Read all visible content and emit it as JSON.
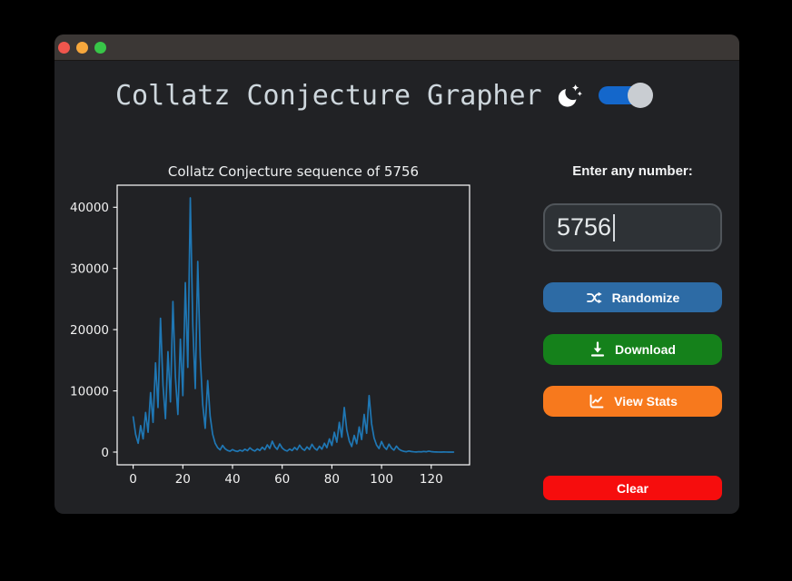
{
  "header": {
    "title": "Collatz Conjecture Grapher",
    "theme_toggle": {
      "state": "on",
      "track_color": "#1467cb",
      "knob_color": "#c9cdd2"
    }
  },
  "panel": {
    "input_label": "Enter any number:",
    "input_value": "5756",
    "buttons": [
      {
        "label": "Randomize",
        "icon": "shuffle-icon",
        "color": "#2d6ba5"
      },
      {
        "label": "Download",
        "icon": "download-icon",
        "color": "#15811b"
      },
      {
        "label": "View Stats",
        "icon": "line-chart-icon",
        "color": "#f7791d"
      },
      {
        "label": "Clear",
        "icon": null,
        "color": "#f60d0d"
      }
    ]
  },
  "chart_data": {
    "type": "line",
    "title": "Collatz Conjecture sequence of 5756",
    "xlabel": "",
    "ylabel": "",
    "grid": false,
    "line_color": "#1f77b4",
    "xlim": [
      -6.45,
      135.45
    ],
    "ylim": [
      -2075,
      43599
    ],
    "xticks": [
      0,
      20,
      40,
      60,
      80,
      100,
      120
    ],
    "yticks": [
      0,
      10000,
      20000,
      30000,
      40000
    ],
    "x_start": 0,
    "values": [
      5756,
      2878,
      1439,
      4318,
      2159,
      6478,
      3239,
      9718,
      4859,
      14578,
      7289,
      21868,
      10934,
      5467,
      16402,
      8201,
      24604,
      12302,
      6151,
      18454,
      9227,
      27682,
      13841,
      41524,
      20762,
      10381,
      31144,
      15572,
      7786,
      3893,
      11680,
      5840,
      2920,
      1460,
      730,
      365,
      1096,
      548,
      274,
      137,
      412,
      206,
      103,
      310,
      155,
      466,
      233,
      700,
      350,
      175,
      526,
      263,
      790,
      395,
      1186,
      593,
      1780,
      890,
      445,
      1336,
      668,
      334,
      167,
      502,
      251,
      754,
      377,
      1132,
      566,
      283,
      850,
      425,
      1276,
      638,
      319,
      958,
      479,
      1438,
      719,
      2158,
      1079,
      3238,
      1619,
      4858,
      2429,
      7288,
      3644,
      1822,
      911,
      2734,
      1367,
      4102,
      2051,
      6154,
      3077,
      9232,
      4616,
      2308,
      1154,
      577,
      1732,
      866,
      433,
      1300,
      650,
      325,
      976,
      488,
      244,
      122,
      61,
      184,
      92,
      46,
      23,
      70,
      35,
      106,
      53,
      160,
      80,
      40,
      20,
      10,
      5,
      16,
      8,
      4,
      2,
      1
    ]
  }
}
